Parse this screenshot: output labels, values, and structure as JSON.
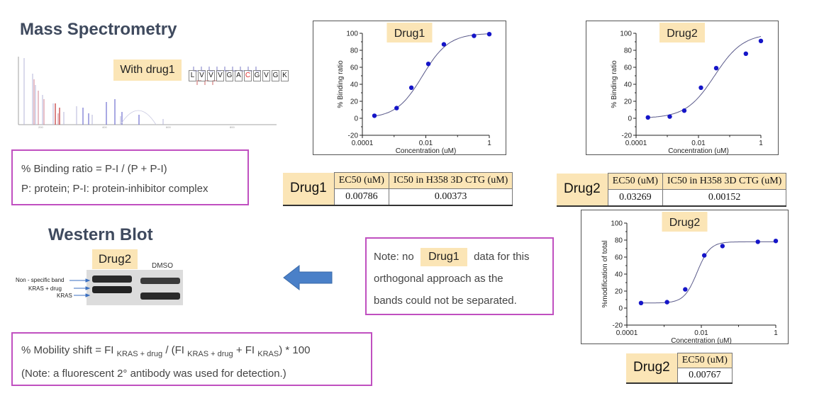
{
  "ms": {
    "title": "Mass Spectrometry",
    "tag": "With drug1",
    "peptide": [
      "L",
      "V",
      "V",
      "V",
      "G",
      "A",
      "C",
      "G",
      "V",
      "G",
      "K"
    ],
    "modified_residue_color": "#e03030"
  },
  "binding_formula": {
    "line1": "% Binding ratio = P-I / (P + P-I)",
    "line2": "P: protein; P-I: protein-inhibitor complex"
  },
  "wb": {
    "title": "Western Blot",
    "tag": "Drug2",
    "lane2": "DMSO",
    "labels": [
      "Non - specific band",
      "KRAS + drug",
      "KRAS"
    ]
  },
  "arrow": {
    "color": "#4a80c8",
    "direction": "left"
  },
  "note": {
    "pre": "Note: no",
    "drug": "Drug1",
    "post": "data for this",
    "line2": "orthogonal approach as the",
    "line3": "bands could not be separated."
  },
  "mobility": {
    "prefix": "% Mobility shift = FI",
    "sub1": "KRAS + drug",
    "mid1": "/ (FI",
    "sub2": "KRAS + drug",
    "mid2": "+ FI",
    "sub3": "KRAS",
    "suffix": ") * 100",
    "note": "(Note: a fluorescent 2° antibody was used for detection.)"
  },
  "tables": {
    "drug1": {
      "label": "Drug1",
      "h1": "EC50 (uM)",
      "h2": "IC50 in H358 3D CTG (uM)",
      "v1": "0.00786",
      "v2": "0.00373"
    },
    "drug2": {
      "label": "Drug2",
      "h1": "EC50 (uM)",
      "h2": "IC50 in H358 3D CTG (uM)",
      "v1": "0.03269",
      "v2": "0.00152"
    },
    "drug2b": {
      "label": "Drug2",
      "h1": "EC50 (uM)",
      "v1": "0.00767"
    }
  },
  "chart_data": [
    {
      "type": "scatter",
      "title": "Drug1",
      "xlabel": "Concentration (uM)",
      "ylabel": "% Binding ratio",
      "xscale": "log",
      "xlim": [
        0.0001,
        1
      ],
      "ylim": [
        -20,
        100
      ],
      "xticks": [
        "0.0001",
        "0.01",
        "1"
      ],
      "yticks": [
        -20,
        0,
        20,
        40,
        60,
        80,
        100
      ],
      "x": [
        0.00024,
        0.0012,
        0.0035,
        0.012,
        0.037,
        0.33,
        1.0
      ],
      "y": [
        3,
        12,
        36,
        64,
        87,
        97,
        99
      ],
      "fit": {
        "bottom": 0,
        "top": 100,
        "ec50": 0.00786,
        "hill": 1.05
      },
      "color": "#1515c8"
    },
    {
      "type": "scatter",
      "title": "Drug2",
      "xlabel": "Concentration (uM)",
      "ylabel": "% Binding ratio",
      "xscale": "log",
      "xlim": [
        0.0001,
        1
      ],
      "ylim": [
        -20,
        100
      ],
      "xticks": [
        "0.0001",
        "0.01",
        "1"
      ],
      "yticks": [
        -20,
        0,
        20,
        40,
        60,
        80,
        100
      ],
      "x": [
        0.00024,
        0.0012,
        0.0035,
        0.012,
        0.037,
        0.33,
        1.0
      ],
      "y": [
        1,
        2,
        9,
        36,
        59,
        76,
        91
      ],
      "fit": {
        "bottom": 0,
        "top": 100,
        "ec50": 0.03269,
        "hill": 0.95
      },
      "color": "#1515c8"
    },
    {
      "type": "scatter",
      "title": "Drug2",
      "xlabel": "Concentration (uM)",
      "ylabel": "%modification of total",
      "xscale": "log",
      "xlim": [
        0.0001,
        1
      ],
      "ylim": [
        -20,
        100
      ],
      "xticks": [
        "0.0001",
        "0.01",
        "1"
      ],
      "yticks": [
        -20,
        0,
        20,
        40,
        60,
        80,
        100
      ],
      "x": [
        0.00024,
        0.0012,
        0.0037,
        0.012,
        0.037,
        0.33,
        1.0
      ],
      "y": [
        6,
        7,
        22,
        62,
        73,
        78,
        79
      ],
      "fit": {
        "bottom": 6,
        "top": 78,
        "ec50": 0.00767,
        "hill": 2.5
      },
      "color": "#1515c8"
    }
  ]
}
